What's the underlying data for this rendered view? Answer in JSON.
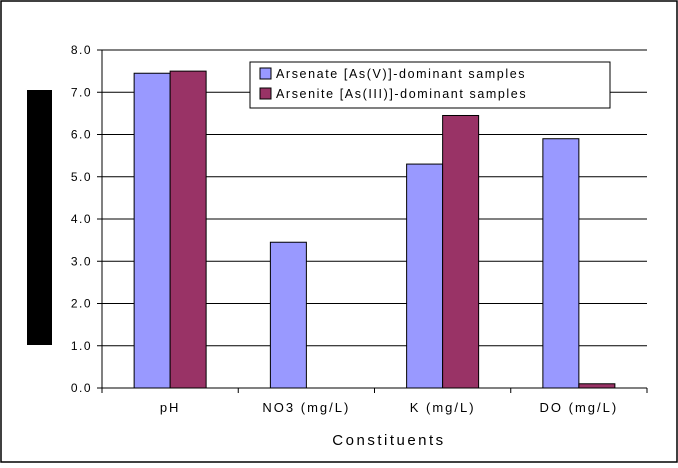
{
  "colors": {
    "background": "#ffffff",
    "frame": "#000000",
    "gridline": "#000000",
    "occluder": "#000000",
    "series": [
      "#9999ff",
      "#993366"
    ]
  },
  "chart_data": {
    "type": "bar",
    "title": "",
    "xlabel": "Constituents",
    "ylabel": "",
    "categories": [
      "pH",
      "NO3 (mg/L)",
      "K (mg/L)",
      "DO (mg/L)"
    ],
    "series": [
      {
        "name": "Arsenate [As(V)]-dominant samples",
        "values": [
          7.45,
          3.45,
          5.3,
          5.9
        ]
      },
      {
        "name": "Arsenite [As(III)]-dominant samples",
        "values": [
          7.5,
          0,
          6.45,
          0.1
        ]
      }
    ],
    "ylim": [
      0,
      8
    ],
    "yticks": [
      "0.0",
      "1.0",
      "2.0",
      "3.0",
      "4.0",
      "5.0",
      "6.0",
      "7.0",
      "8.0"
    ],
    "grid": true,
    "legend_position": "top-right"
  }
}
